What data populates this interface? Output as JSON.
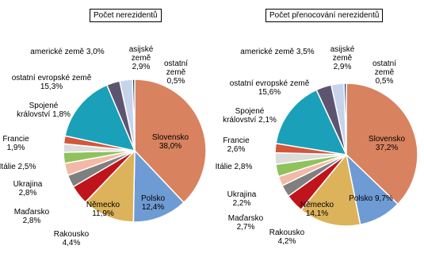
{
  "chart_data": [
    {
      "type": "pie",
      "title": "Počet nerezidentů",
      "categories": [
        "Slovensko",
        "Polsko",
        "Německo",
        "Rakousko",
        "Maďarsko",
        "Ukrajina",
        "Itálie",
        "Francie",
        "Spojené království",
        "ostatní evropské země",
        "americké země",
        "asijské země",
        "ostatní země"
      ],
      "values": [
        38.0,
        12.4,
        11.9,
        4.4,
        2.8,
        2.8,
        2.5,
        1.9,
        1.8,
        15.3,
        3.0,
        2.9,
        0.5
      ],
      "value_labels": [
        "38,0%",
        "12,4%",
        "11,9%",
        "4,4%",
        "2,8%",
        "2,8%",
        "2,5%",
        "1,9%",
        "1,8%",
        "15,3%",
        "3,0%",
        "2,9%",
        "0,5%"
      ],
      "colors": [
        "#d9825f",
        "#6f9bd4",
        "#dcb25a",
        "#c0141d",
        "#7f7f7f",
        "#f2b9a6",
        "#8fc25c",
        "#dcdcdc",
        "#d2573b",
        "#1aa0b8",
        "#5d5570",
        "#c6d4eb",
        "#1f3864"
      ]
    },
    {
      "type": "pie",
      "title": "Počet přenocování nerezidentů",
      "categories": [
        "Slovensko",
        "Polsko",
        "Německo",
        "Rakousko",
        "Maďarsko",
        "Ukrajina",
        "Itálie",
        "Francie",
        "Spojené království",
        "ostatní evropské země",
        "americké země",
        "asijské země",
        "ostatní země"
      ],
      "values": [
        37.2,
        9.7,
        14.1,
        4.2,
        2.7,
        2.2,
        2.8,
        2.6,
        2.1,
        15.6,
        3.5,
        2.9,
        0.5
      ],
      "value_labels": [
        "37,2%",
        "9,7%",
        "14,1%",
        "4,2%",
        "2,7%",
        "2,2%",
        "2,8%",
        "2,6%",
        "2,1%",
        "15,6%",
        "3,5%",
        "2,9%",
        "0,5%"
      ],
      "colors": [
        "#d9825f",
        "#6f9bd4",
        "#dcb25a",
        "#c0141d",
        "#7f7f7f",
        "#f2b9a6",
        "#8fc25c",
        "#dcdcdc",
        "#d2573b",
        "#1aa0b8",
        "#5d5570",
        "#c6d4eb",
        "#1f3864"
      ]
    }
  ]
}
